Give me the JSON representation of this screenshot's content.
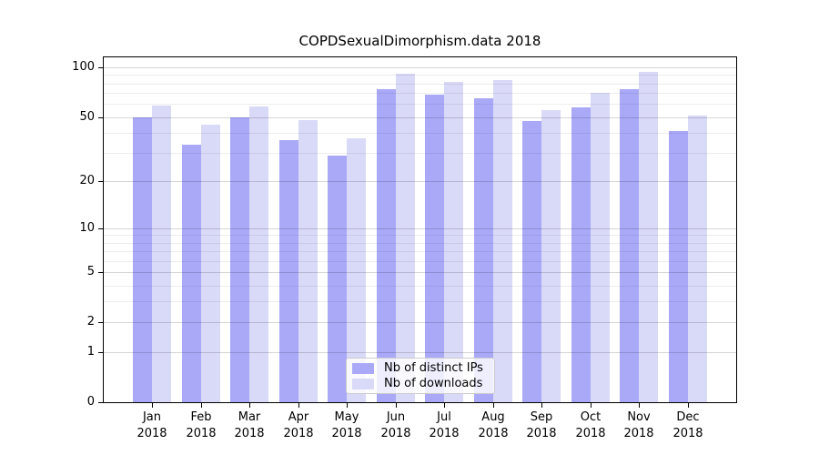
{
  "title": "COPDSexualDimorphism.data 2018",
  "chart_data": {
    "type": "bar",
    "title": "COPDSexualDimorphism.data 2018",
    "categories": [
      "Jan",
      "Feb",
      "Mar",
      "Apr",
      "May",
      "Jun",
      "Jul",
      "Aug",
      "Sep",
      "Oct",
      "Nov",
      "Dec"
    ],
    "year_label": "2018",
    "series": [
      {
        "name": "Nb of distinct IPs",
        "color": "#a9a9f8",
        "values": [
          50,
          34,
          50,
          36,
          29,
          74,
          68,
          65,
          47,
          57,
          74,
          41
        ]
      },
      {
        "name": "Nb of downloads",
        "color": "#d9d9f8",
        "values": [
          59,
          45,
          58,
          48,
          37,
          92,
          82,
          84,
          55,
          70,
          94,
          51
        ]
      }
    ],
    "xlabel": "",
    "ylabel": "",
    "yscale": "log10(1+x)",
    "ylim": [
      0,
      115
    ],
    "yticks": [
      0,
      1,
      2,
      5,
      10,
      20,
      50,
      100
    ],
    "minor_grid_values": [
      3,
      4,
      6,
      7,
      8,
      9,
      30,
      40,
      60,
      70,
      80,
      90
    ],
    "grid": true,
    "legend_position": "lower center"
  },
  "colors": {
    "bar_distinct_ips": "#a9a9f8",
    "bar_downloads": "#d9d9f8",
    "grid_major": "rgba(0,0,0,0.16)",
    "grid_minor": "rgba(0,0,0,0.07)",
    "axis": "#000000",
    "legend_border": "#cccccc",
    "legend_background": "rgba(255,255,255,0.8)"
  }
}
